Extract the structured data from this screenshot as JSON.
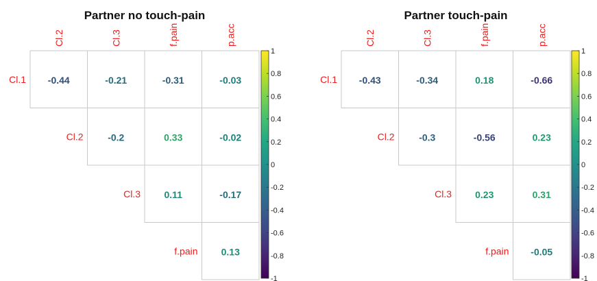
{
  "chart_data": [
    {
      "type": "heatmap",
      "title": "Partner no touch-pain",
      "row_labels": [
        "Cl.1",
        "Cl.2",
        "Cl.3",
        "f.pain"
      ],
      "col_labels": [
        "Cl.2",
        "Cl.3",
        "f.pain",
        "p.acc"
      ],
      "layout": "upper-triangle",
      "values": [
        [
          -0.44,
          -0.21,
          -0.31,
          -0.03
        ],
        [
          null,
          -0.2,
          0.33,
          -0.02
        ],
        [
          null,
          null,
          0.11,
          -0.17
        ],
        [
          null,
          null,
          null,
          0.13
        ]
      ],
      "value_labels": [
        [
          "-0.44",
          "-0.21",
          "-0.31",
          "-0.03"
        ],
        [
          null,
          "-0.2",
          "0.33",
          "-0.02"
        ],
        [
          null,
          null,
          "0.11",
          "-0.17"
        ],
        [
          null,
          null,
          null,
          "0.13"
        ]
      ],
      "colorbar": {
        "range": [
          -1,
          1
        ],
        "ticks": [
          "1",
          "0.8",
          "0.6",
          "0.4",
          "0.2",
          "0",
          "-0.2",
          "-0.4",
          "-0.6",
          "-0.8",
          "-1"
        ],
        "colormap": "viridis"
      },
      "label_color": "#ee1c1c"
    },
    {
      "type": "heatmap",
      "title": "Partner touch-pain",
      "row_labels": [
        "Cl.1",
        "Cl.2",
        "Cl.3",
        "f.pain"
      ],
      "col_labels": [
        "Cl.2",
        "Cl.3",
        "f.pain",
        "p.acc"
      ],
      "layout": "upper-triangle",
      "values": [
        [
          -0.43,
          -0.34,
          0.18,
          -0.66
        ],
        [
          null,
          -0.3,
          -0.56,
          0.23
        ],
        [
          null,
          null,
          0.23,
          0.31
        ],
        [
          null,
          null,
          null,
          -0.05
        ]
      ],
      "value_labels": [
        [
          "-0.43",
          "-0.34",
          "0.18",
          "-0.66"
        ],
        [
          null,
          "-0.3",
          "-0.56",
          "0.23"
        ],
        [
          null,
          null,
          "0.23",
          "0.31"
        ],
        [
          null,
          null,
          null,
          "-0.05"
        ]
      ],
      "colorbar": {
        "range": [
          -1,
          1
        ],
        "ticks": [
          "1",
          "0.8",
          "0.6",
          "0.4",
          "0.2",
          "0",
          "-0.2",
          "-0.4",
          "-0.6",
          "-0.8",
          "-1"
        ],
        "colormap": "viridis"
      },
      "label_color": "#ee1c1c"
    }
  ]
}
